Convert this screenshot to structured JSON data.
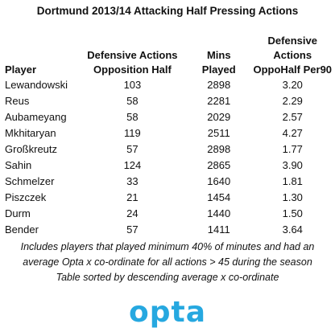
{
  "title": "Dortmund 2013/14 Attacking Half Pressing Actions",
  "columns": {
    "player": "Player",
    "da_line1": "Defensive Actions",
    "da_line2": "Opposition Half",
    "mins_line1": "Mins",
    "mins_line2": "Played",
    "per_line1": "Defensive Actions",
    "per_line2": "OppoHalf Per90"
  },
  "rows": [
    {
      "player": "Lewandowski",
      "da": "103",
      "mins": "2898",
      "per90": "3.20"
    },
    {
      "player": "Reus",
      "da": "58",
      "mins": "2281",
      "per90": "2.29"
    },
    {
      "player": "Aubameyang",
      "da": "58",
      "mins": "2029",
      "per90": "2.57"
    },
    {
      "player": "Mkhitaryan",
      "da": "119",
      "mins": "2511",
      "per90": "4.27"
    },
    {
      "player": "Großkreutz",
      "da": "57",
      "mins": "2898",
      "per90": "1.77"
    },
    {
      "player": "Sahin",
      "da": "124",
      "mins": "2865",
      "per90": "3.90"
    },
    {
      "player": "Schmelzer",
      "da": "33",
      "mins": "1640",
      "per90": "1.81"
    },
    {
      "player": "Piszczek",
      "da": "21",
      "mins": "1454",
      "per90": "1.30"
    },
    {
      "player": "Durm",
      "da": "24",
      "mins": "1440",
      "per90": "1.50"
    },
    {
      "player": "Bender",
      "da": "57",
      "mins": "1411",
      "per90": "3.64"
    }
  ],
  "notes": [
    "Includes players that played minimum 40% of minutes and had an",
    "average Opta x co-ordinate for all actions > 45 during the season",
    "Table sorted by descending average x co-ordinate"
  ],
  "logo_text": "opta",
  "colors": {
    "logo": "#26a8e0"
  }
}
